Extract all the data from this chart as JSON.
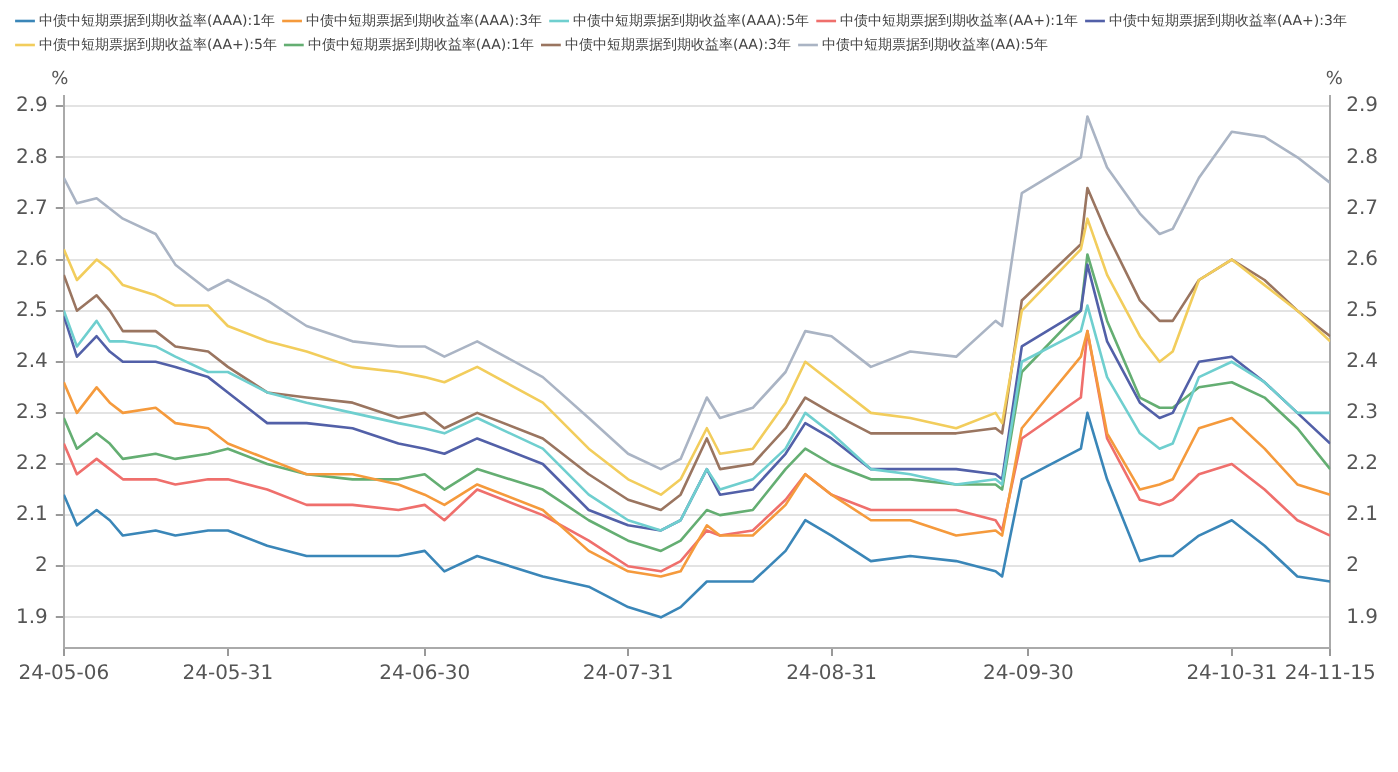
{
  "chart_data": {
    "type": "line",
    "ylabel": "%",
    "y2label": "%",
    "x": [
      "--05-06",
      "--05-08",
      "--05-11",
      "--05-13",
      "--05-15",
      "--05-20",
      "--05-23",
      "--05-28",
      "--05-31",
      "--06-06",
      "--06-12",
      "--06-19",
      "--06-26",
      "--06-30",
      "--07-03",
      "--07-08",
      "--07-18",
      "--07-25",
      "--07-31",
      "--08-05",
      "--08-08",
      "--08-12",
      "--08-14",
      "--08-19",
      "--08-24",
      "--08-27",
      "--08-31",
      "--09-06",
      "--09-12",
      "--09-19",
      "--09-25",
      "--09-26",
      "--09-29",
      "--10-08",
      "--10-09",
      "--10-12",
      "--10-17",
      "--10-20",
      "--10-22",
      "--10-26",
      "--10-31",
      "--11-05",
      "--11-10",
      "--11-15"
    ],
    "series": [
      {
        "name": "中债中短期票据到期收益率(AAA):1年",
        "color": "#3a86b8",
        "values": [
          2.14,
          2.08,
          2.11,
          2.09,
          2.06,
          2.07,
          2.06,
          2.07,
          2.07,
          2.04,
          2.02,
          2.02,
          2.02,
          2.03,
          1.99,
          2.02,
          1.98,
          1.96,
          1.92,
          1.9,
          1.92,
          1.97,
          1.97,
          1.97,
          2.03,
          2.09,
          2.06,
          2.01,
          2.02,
          2.01,
          1.99,
          1.98,
          2.17,
          2.23,
          2.3,
          2.17,
          2.01,
          2.02,
          2.02,
          2.06,
          2.09,
          2.04,
          1.98,
          1.97
        ]
      },
      {
        "name": "中债中短期票据到期收益率(AAA):3年",
        "color": "#f59a3c",
        "values": [
          2.36,
          2.3,
          2.35,
          2.32,
          2.3,
          2.31,
          2.28,
          2.27,
          2.24,
          2.21,
          2.18,
          2.18,
          2.16,
          2.14,
          2.12,
          2.16,
          2.11,
          2.03,
          1.99,
          1.98,
          1.99,
          2.08,
          2.06,
          2.06,
          2.12,
          2.18,
          2.14,
          2.09,
          2.09,
          2.06,
          2.07,
          2.06,
          2.27,
          2.41,
          2.46,
          2.26,
          2.15,
          2.16,
          2.17,
          2.27,
          2.29,
          2.23,
          2.16,
          2.14
        ]
      },
      {
        "name": "中债中短期票据到期收益率(AAA):5年",
        "color": "#6fcfcf",
        "values": [
          2.5,
          2.43,
          2.48,
          2.44,
          2.44,
          2.43,
          2.41,
          2.38,
          2.38,
          2.34,
          2.32,
          2.3,
          2.28,
          2.27,
          2.26,
          2.29,
          2.23,
          2.14,
          2.09,
          2.07,
          2.09,
          2.19,
          2.15,
          2.17,
          2.23,
          2.3,
          2.26,
          2.19,
          2.18,
          2.16,
          2.17,
          2.16,
          2.4,
          2.46,
          2.51,
          2.37,
          2.26,
          2.23,
          2.24,
          2.37,
          2.4,
          2.36,
          2.3,
          2.3
        ]
      },
      {
        "name": "中债中短期票据到期收益率(AA+):1年",
        "color": "#ef6f6c",
        "values": [
          2.24,
          2.18,
          2.21,
          2.19,
          2.17,
          2.17,
          2.16,
          2.17,
          2.17,
          2.15,
          2.12,
          2.12,
          2.11,
          2.12,
          2.09,
          2.15,
          2.1,
          2.05,
          2.0,
          1.99,
          2.01,
          2.07,
          2.06,
          2.07,
          2.13,
          2.18,
          2.14,
          2.11,
          2.11,
          2.11,
          2.09,
          2.07,
          2.25,
          2.33,
          2.46,
          2.25,
          2.13,
          2.12,
          2.13,
          2.18,
          2.2,
          2.15,
          2.09,
          2.06
        ]
      },
      {
        "name": "中债中短期票据到期收益率(AA+):3年",
        "color": "#5260a8",
        "values": [
          2.49,
          2.41,
          2.45,
          2.42,
          2.4,
          2.4,
          2.39,
          2.37,
          2.34,
          2.28,
          2.28,
          2.27,
          2.24,
          2.23,
          2.22,
          2.25,
          2.2,
          2.11,
          2.08,
          2.07,
          2.09,
          2.19,
          2.14,
          2.15,
          2.22,
          2.28,
          2.25,
          2.19,
          2.19,
          2.19,
          2.18,
          2.17,
          2.43,
          2.5,
          2.59,
          2.44,
          2.32,
          2.29,
          2.3,
          2.4,
          2.41,
          2.36,
          2.3,
          2.24
        ]
      },
      {
        "name": "中债中短期票据到期收益率(AA+):5年",
        "color": "#f2cd5c",
        "values": [
          2.62,
          2.56,
          2.6,
          2.58,
          2.55,
          2.53,
          2.51,
          2.51,
          2.47,
          2.44,
          2.42,
          2.39,
          2.38,
          2.37,
          2.36,
          2.39,
          2.32,
          2.23,
          2.17,
          2.14,
          2.17,
          2.27,
          2.22,
          2.23,
          2.32,
          2.4,
          2.36,
          2.3,
          2.29,
          2.27,
          2.3,
          2.28,
          2.5,
          2.62,
          2.68,
          2.57,
          2.45,
          2.4,
          2.42,
          2.56,
          2.6,
          2.55,
          2.5,
          2.44
        ]
      },
      {
        "name": "中债中短期票据到期收益率(AA):1年",
        "color": "#64ae72",
        "values": [
          2.29,
          2.23,
          2.26,
          2.24,
          2.21,
          2.22,
          2.21,
          2.22,
          2.23,
          2.2,
          2.18,
          2.17,
          2.17,
          2.18,
          2.15,
          2.19,
          2.15,
          2.09,
          2.05,
          2.03,
          2.05,
          2.11,
          2.1,
          2.11,
          2.19,
          2.23,
          2.2,
          2.17,
          2.17,
          2.16,
          2.16,
          2.15,
          2.38,
          2.5,
          2.61,
          2.48,
          2.33,
          2.31,
          2.31,
          2.35,
          2.36,
          2.33,
          2.27,
          2.19
        ]
      },
      {
        "name": "中债中短期票据到期收益率(AA):3年",
        "color": "#9a7560",
        "values": [
          2.57,
          2.5,
          2.53,
          2.5,
          2.46,
          2.46,
          2.43,
          2.42,
          2.39,
          2.34,
          2.33,
          2.32,
          2.29,
          2.3,
          2.27,
          2.3,
          2.25,
          2.18,
          2.13,
          2.11,
          2.14,
          2.25,
          2.19,
          2.2,
          2.27,
          2.33,
          2.3,
          2.26,
          2.26,
          2.26,
          2.27,
          2.26,
          2.52,
          2.63,
          2.74,
          2.65,
          2.52,
          2.48,
          2.48,
          2.56,
          2.6,
          2.56,
          2.5,
          2.45
        ]
      },
      {
        "name": "中债中短期票据到期收益率(AA):5年",
        "color": "#aab4c4",
        "values": [
          2.76,
          2.71,
          2.72,
          2.7,
          2.68,
          2.65,
          2.59,
          2.54,
          2.56,
          2.52,
          2.47,
          2.44,
          2.43,
          2.43,
          2.41,
          2.44,
          2.37,
          2.29,
          2.22,
          2.19,
          2.21,
          2.33,
          2.29,
          2.31,
          2.38,
          2.46,
          2.45,
          2.39,
          2.42,
          2.41,
          2.48,
          2.47,
          2.73,
          2.8,
          2.88,
          2.78,
          2.69,
          2.65,
          2.66,
          2.76,
          2.85,
          2.84,
          2.8,
          2.75
        ]
      }
    ],
    "xlim": [
      "--05-06",
      "--11-15"
    ],
    "xticks": [
      {
        "value": "--05-06",
        "label": "24-05-06"
      },
      {
        "value": "--05-31",
        "label": "24-05-31"
      },
      {
        "value": "--06-30",
        "label": "24-06-30"
      },
      {
        "value": "--07-31",
        "label": "24-07-31"
      },
      {
        "value": "--08-31",
        "label": "24-08-31"
      },
      {
        "value": "--09-30",
        "label": "24-09-30"
      },
      {
        "value": "--10-31",
        "label": "24-10-31"
      },
      {
        "value": "--11-15",
        "label": "24-11-15"
      }
    ],
    "ylim": [
      1.84,
      2.92
    ],
    "yticks": [
      1.9,
      2,
      2.1,
      2.2,
      2.3,
      2.4,
      2.5,
      2.6,
      2.7,
      2.8,
      2.9
    ],
    "y2lim": [
      1.84,
      2.92
    ],
    "y2ticks": [
      1.9,
      2,
      2.1,
      2.2,
      2.3,
      2.4,
      2.5,
      2.6,
      2.7,
      2.8,
      2.9
    ],
    "grid": "y",
    "legend": "top",
    "marker": "none",
    "line_style": "solid"
  }
}
